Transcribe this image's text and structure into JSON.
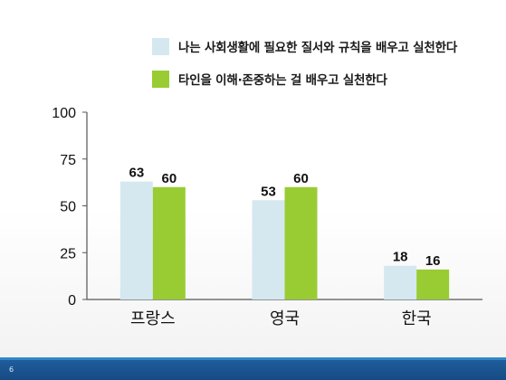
{
  "slide": {
    "page_number": "6"
  },
  "chart_data": {
    "type": "bar",
    "categories": [
      "프랑스",
      "영국",
      "한국"
    ],
    "series": [
      {
        "name": "나는 사회생활에 필요한 질서와 규칙을 배우고 실천한다",
        "color": "#d5e8f0",
        "values": [
          63,
          53,
          18
        ]
      },
      {
        "name": "타인을 이해·존중하는 걸 배우고 실천한다",
        "color": "#99cc33",
        "values": [
          60,
          60,
          16
        ]
      }
    ],
    "yticks": [
      "0",
      "25",
      "50",
      "75",
      "100"
    ],
    "ylim": [
      0,
      100
    ],
    "grid": false,
    "legend_position": "top-right",
    "data_labels": true
  }
}
